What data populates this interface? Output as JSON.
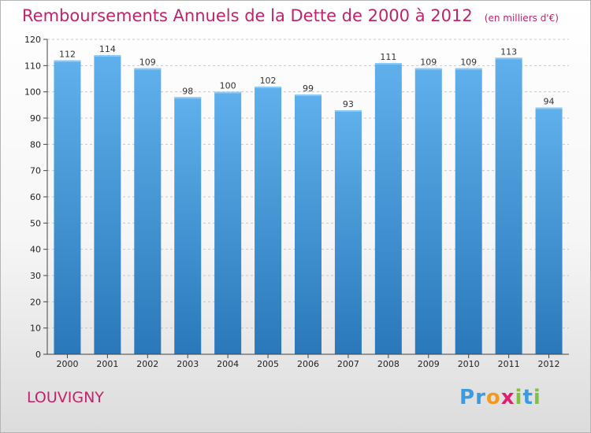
{
  "page": {
    "title": "Remboursements Annuels de la Dette de 2000 à 2012",
    "subtitle": "(en milliers d'€)",
    "city": "LOUVIGNY",
    "logo": {
      "letters": [
        "P",
        "r",
        "o",
        "x",
        "i",
        "t",
        "i"
      ],
      "colors": [
        "#3a9be0",
        "#3a9be0",
        "#f29a1d",
        "#e0206e",
        "#7fc241",
        "#3a9be0",
        "#7fc241"
      ]
    }
  },
  "colors": {
    "title": "#c0246a",
    "bar_light": "#5fb0ec",
    "bar_dark": "#2a78b9",
    "grid": "#c8c8c8"
  },
  "chart_data": {
    "type": "bar",
    "title": "Remboursements Annuels de la Dette de 2000 à 2012",
    "subtitle": "(en milliers d'€)",
    "categories": [
      "2000",
      "2001",
      "2002",
      "2003",
      "2004",
      "2005",
      "2006",
      "2007",
      "2008",
      "2009",
      "2010",
      "2011",
      "2012"
    ],
    "values": [
      112,
      114,
      109,
      98,
      100,
      102,
      99,
      93,
      111,
      109,
      109,
      113,
      94
    ],
    "ylim": [
      0,
      120
    ],
    "yticks": [
      0,
      10,
      20,
      30,
      40,
      50,
      60,
      70,
      80,
      90,
      100,
      110,
      120
    ],
    "grid": true,
    "legend": "none"
  }
}
